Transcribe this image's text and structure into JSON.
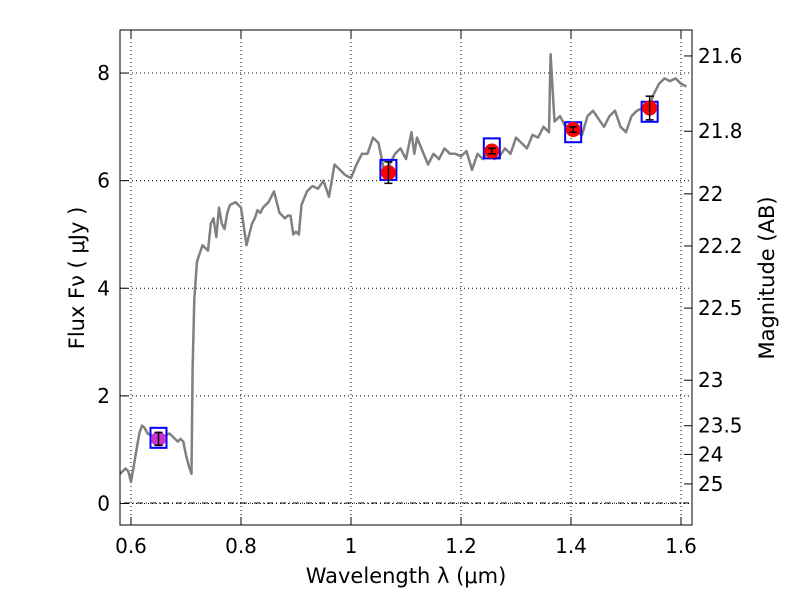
{
  "chart_data": {
    "type": "line",
    "xlabel": "Wavelength  λ (μm)",
    "ylabel": "Flux  Fν  ( μJy )",
    "y2label": "Magnitude (AB)",
    "xlim": [
      0.58,
      1.62
    ],
    "ylim": [
      -0.4,
      8.8
    ],
    "grid": true,
    "xticks": [
      {
        "value": 0.6,
        "label": "0.6"
      },
      {
        "value": 0.8,
        "label": "0.8"
      },
      {
        "value": 1.0,
        "label": "1"
      },
      {
        "value": 1.2,
        "label": "1.2"
      },
      {
        "value": 1.4,
        "label": "1.4"
      },
      {
        "value": 1.6,
        "label": "1.6"
      }
    ],
    "yticks": [
      {
        "value": 0,
        "label": "0"
      },
      {
        "value": 2,
        "label": "2"
      },
      {
        "value": 4,
        "label": "4"
      },
      {
        "value": 6,
        "label": "6"
      },
      {
        "value": 8,
        "label": "8"
      }
    ],
    "magnitude_ticks": [
      {
        "value": 21.6,
        "label": "21.6"
      },
      {
        "value": 21.8,
        "label": "21.8"
      },
      {
        "value": 22.0,
        "label": "22"
      },
      {
        "value": 22.2,
        "label": "22.2"
      },
      {
        "value": 22.5,
        "label": "22.5"
      },
      {
        "value": 23.0,
        "label": "23"
      },
      {
        "value": 23.5,
        "label": "23.5"
      },
      {
        "value": 24.0,
        "label": "24"
      },
      {
        "value": 25.0,
        "label": "25"
      }
    ],
    "template_sed": {
      "color": "#808080",
      "x": [
        0.58,
        0.59,
        0.595,
        0.6,
        0.605,
        0.61,
        0.615,
        0.62,
        0.625,
        0.63,
        0.64,
        0.65,
        0.66,
        0.67,
        0.68,
        0.685,
        0.69,
        0.695,
        0.7,
        0.705,
        0.71,
        0.712,
        0.715,
        0.72,
        0.73,
        0.74,
        0.745,
        0.75,
        0.755,
        0.76,
        0.765,
        0.77,
        0.775,
        0.78,
        0.79,
        0.8,
        0.81,
        0.815,
        0.82,
        0.825,
        0.83,
        0.835,
        0.84,
        0.85,
        0.86,
        0.87,
        0.88,
        0.885,
        0.89,
        0.895,
        0.9,
        0.905,
        0.91,
        0.92,
        0.93,
        0.94,
        0.95,
        0.96,
        0.97,
        0.98,
        0.99,
        1.0,
        1.01,
        1.02,
        1.03,
        1.04,
        1.05,
        1.06,
        1.07,
        1.08,
        1.09,
        1.1,
        1.11,
        1.115,
        1.12,
        1.13,
        1.14,
        1.15,
        1.16,
        1.17,
        1.18,
        1.19,
        1.2,
        1.21,
        1.22,
        1.23,
        1.24,
        1.25,
        1.26,
        1.27,
        1.28,
        1.29,
        1.3,
        1.31,
        1.32,
        1.33,
        1.34,
        1.35,
        1.36,
        1.363,
        1.37,
        1.38,
        1.39,
        1.4,
        1.41,
        1.42,
        1.43,
        1.44,
        1.45,
        1.46,
        1.47,
        1.48,
        1.49,
        1.5,
        1.51,
        1.52,
        1.53,
        1.54,
        1.55,
        1.56,
        1.57,
        1.58,
        1.59,
        1.6,
        1.61
      ],
      "y": [
        0.55,
        0.65,
        0.6,
        0.4,
        0.7,
        1.0,
        1.3,
        1.45,
        1.4,
        1.3,
        1.25,
        1.2,
        1.25,
        1.3,
        1.2,
        1.15,
        1.2,
        1.15,
        0.9,
        0.7,
        0.55,
        2.5,
        3.8,
        4.5,
        4.8,
        4.7,
        5.2,
        5.3,
        4.95,
        5.5,
        5.2,
        5.1,
        5.4,
        5.55,
        5.6,
        5.5,
        4.8,
        5.0,
        5.2,
        5.3,
        5.45,
        5.4,
        5.5,
        5.6,
        5.8,
        5.4,
        5.3,
        5.35,
        5.35,
        5.0,
        5.05,
        5.0,
        5.55,
        5.8,
        5.9,
        5.85,
        6.0,
        5.7,
        6.3,
        6.2,
        6.1,
        6.05,
        6.3,
        6.5,
        6.5,
        6.8,
        6.7,
        6.2,
        6.3,
        6.5,
        6.6,
        6.4,
        6.9,
        6.5,
        6.8,
        6.55,
        6.3,
        6.5,
        6.4,
        6.6,
        6.5,
        6.5,
        6.45,
        6.55,
        6.2,
        6.5,
        6.4,
        6.55,
        6.4,
        6.45,
        6.6,
        6.5,
        6.8,
        6.7,
        6.6,
        6.85,
        6.8,
        7.0,
        6.9,
        8.35,
        7.1,
        7.2,
        7.0,
        7.05,
        6.9,
        6.85,
        7.2,
        7.3,
        7.15,
        7.0,
        7.2,
        7.3,
        7.0,
        6.9,
        7.2,
        7.3,
        7.35,
        7.3,
        7.6,
        7.8,
        7.9,
        7.85,
        7.9,
        7.8,
        7.75
      ]
    },
    "model_photometry": {
      "marker": "open-square",
      "color": "#0000ff",
      "points": [
        [
          0.65,
          1.22
        ],
        [
          1.068,
          6.2
        ],
        [
          1.256,
          6.6
        ],
        [
          1.404,
          6.9
        ],
        [
          1.543,
          7.28
        ]
      ]
    },
    "observed_photometry": {
      "marker": "filled-circle",
      "colors": [
        "#cc33cc",
        "#ff0000",
        "#ff0000",
        "#ff0000",
        "#ff0000"
      ],
      "points": [
        {
          "x": 0.65,
          "y": 1.2,
          "err": 0.12
        },
        {
          "x": 1.068,
          "y": 6.15,
          "err": 0.2
        },
        {
          "x": 1.256,
          "y": 6.55,
          "err": 0.05
        },
        {
          "x": 1.404,
          "y": 6.95,
          "err": 0.05
        },
        {
          "x": 1.543,
          "y": 7.35,
          "err": 0.22
        }
      ]
    }
  }
}
